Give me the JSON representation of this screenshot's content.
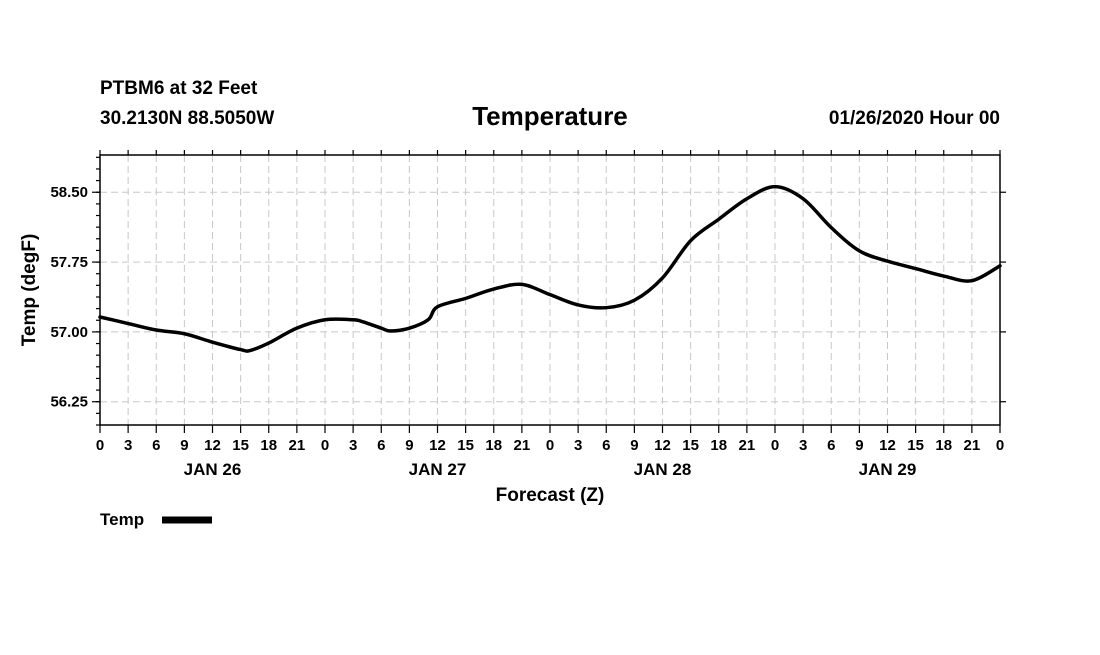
{
  "header": {
    "station": "PTBM6 at 32 Feet",
    "location": "30.2130N 88.5050W",
    "title": "Temperature",
    "datetime": "01/26/2020 Hour 00"
  },
  "chart_data": {
    "type": "line",
    "title": "Temperature",
    "xlabel": "Forecast (Z)",
    "ylabel": "Temp (degF)",
    "xlim_hours": [
      0,
      96
    ],
    "ylim": [
      56.0,
      58.9
    ],
    "y_ticks": [
      56.25,
      57.0,
      57.75,
      58.5
    ],
    "y_tick_labels": [
      "56.25",
      "57.00",
      "57.75",
      "58.50"
    ],
    "x_ticks_hours": [
      0,
      3,
      6,
      9,
      12,
      15,
      18,
      21,
      24,
      27,
      30,
      33,
      36,
      39,
      42,
      45,
      48,
      51,
      54,
      57,
      60,
      63,
      66,
      69,
      72,
      75,
      78,
      81,
      84,
      87,
      90,
      93,
      96
    ],
    "x_tick_labels": [
      "0",
      "3",
      "6",
      "9",
      "12",
      "15",
      "18",
      "21",
      "0",
      "3",
      "6",
      "9",
      "12",
      "15",
      "18",
      "21",
      "0",
      "3",
      "6",
      "9",
      "12",
      "15",
      "18",
      "21",
      "0",
      "3",
      "6",
      "9",
      "12",
      "15",
      "18",
      "21",
      "0"
    ],
    "day_labels": [
      {
        "label": "JAN 26",
        "hour": 12
      },
      {
        "label": "JAN 27",
        "hour": 36
      },
      {
        "label": "JAN 28",
        "hour": 60
      },
      {
        "label": "JAN 29",
        "hour": 84
      }
    ],
    "grid": true,
    "legend_position": "bottom-left",
    "series": [
      {
        "name": "Temp",
        "x": [
          0,
          3,
          6,
          9,
          12,
          15,
          16,
          18,
          21,
          24,
          27,
          28,
          30,
          31,
          33,
          35,
          36,
          39,
          42,
          45,
          48,
          51,
          54,
          57,
          60,
          63,
          66,
          69,
          72,
          75,
          78,
          81,
          84,
          87,
          90,
          93,
          96
        ],
        "values": [
          57.16,
          57.09,
          57.02,
          56.98,
          56.89,
          56.81,
          56.8,
          56.88,
          57.04,
          57.13,
          57.13,
          57.11,
          57.04,
          57.01,
          57.04,
          57.13,
          57.27,
          57.36,
          57.46,
          57.51,
          57.4,
          57.29,
          57.26,
          57.34,
          57.58,
          57.98,
          58.21,
          58.43,
          58.56,
          58.43,
          58.12,
          57.87,
          57.76,
          57.68,
          57.6,
          57.55,
          57.71
        ]
      }
    ]
  },
  "legend": {
    "label": "Temp"
  },
  "colors": {
    "series": "#000000",
    "grid": "#c8c8c8",
    "frame": "#000000",
    "background": "#ffffff"
  }
}
